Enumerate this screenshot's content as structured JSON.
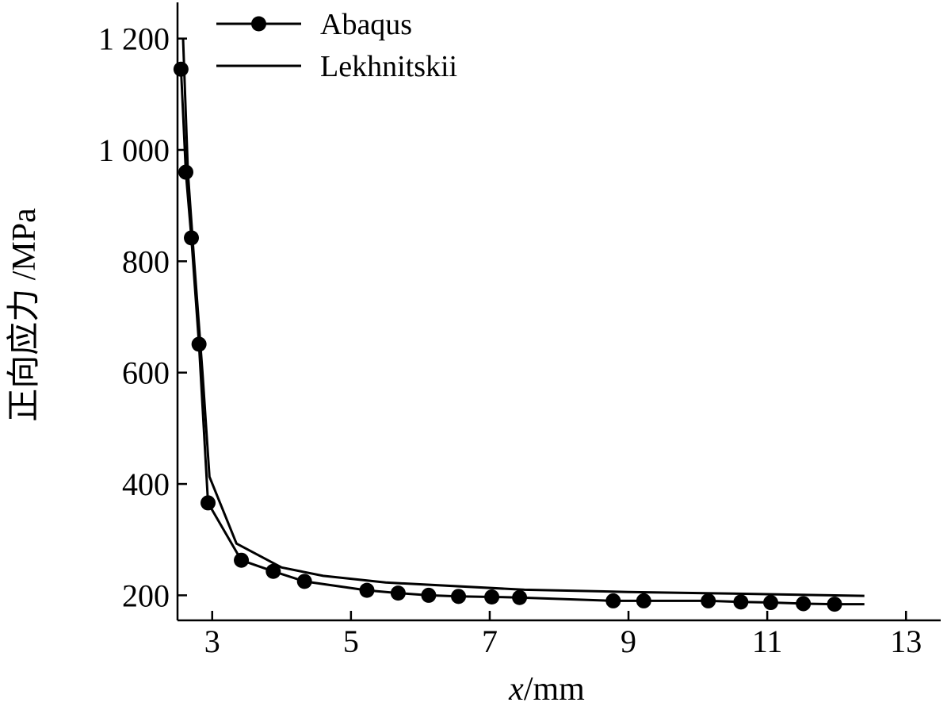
{
  "chart_data": {
    "type": "line",
    "xlabel_var": "x",
    "xlabel_unit": "/mm",
    "ylabel": "正向应力 /MPa",
    "xlim": [
      2.5,
      13.5
    ],
    "ylim": [
      155,
      1265
    ],
    "x_ticks": [
      3,
      5,
      7,
      9,
      11,
      13
    ],
    "x_tick_labels": [
      "3",
      "5",
      "7",
      "9",
      "11",
      "13"
    ],
    "y_ticks": [
      200,
      400,
      600,
      800,
      1000,
      1200
    ],
    "y_tick_labels": [
      "200",
      "400",
      "600",
      "800",
      "1 000",
      "1 200"
    ],
    "legend_position": "top-left",
    "series": [
      {
        "name": "Abaqus",
        "marker": "circle",
        "line": true,
        "points": [
          [
            2.55,
            1145
          ],
          [
            2.62,
            960
          ],
          [
            2.7,
            842
          ],
          [
            2.81,
            651
          ],
          [
            2.94,
            366
          ],
          [
            3.42,
            263
          ],
          [
            3.88,
            243
          ],
          [
            4.33,
            225
          ],
          [
            5.23,
            209
          ],
          [
            5.68,
            204
          ],
          [
            6.12,
            200
          ],
          [
            6.55,
            198
          ],
          [
            7.03,
            197
          ],
          [
            7.43,
            196
          ],
          [
            8.78,
            190
          ],
          [
            9.22,
            190
          ],
          [
            10.15,
            190
          ],
          [
            10.62,
            188
          ],
          [
            11.05,
            187
          ],
          [
            11.52,
            185
          ],
          [
            11.97,
            184
          ]
        ],
        "line_end_x": 12.4,
        "line_end_y": 184
      },
      {
        "name": "Lekhnitskii",
        "marker": "none",
        "line": true,
        "points": [
          [
            2.58,
            1200
          ],
          [
            2.65,
            960
          ],
          [
            2.74,
            800
          ],
          [
            2.86,
            600
          ],
          [
            2.96,
            413
          ],
          [
            3.35,
            293
          ],
          [
            4.0,
            250
          ],
          [
            4.6,
            235
          ],
          [
            5.5,
            223
          ],
          [
            7.5,
            210
          ],
          [
            9.0,
            206
          ],
          [
            10.5,
            203
          ],
          [
            12.4,
            199
          ]
        ]
      }
    ]
  }
}
